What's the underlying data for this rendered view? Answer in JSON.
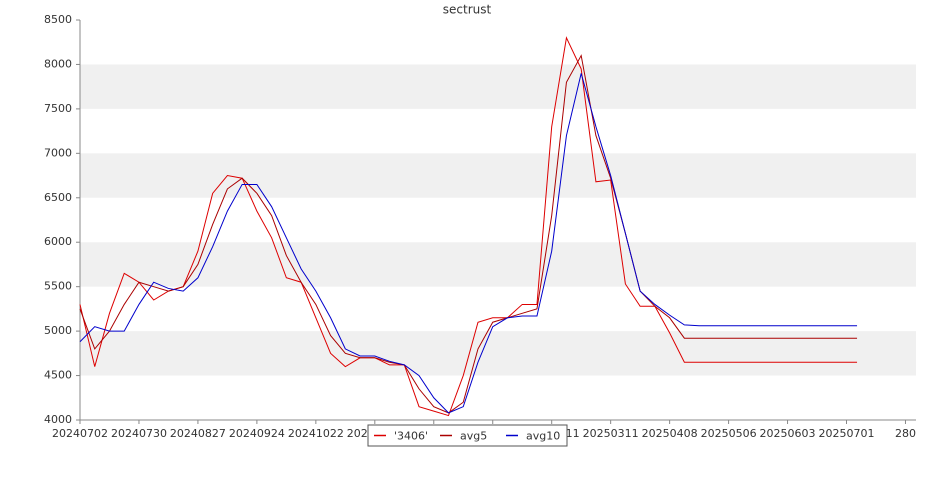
{
  "chart_data": {
    "type": "line",
    "title": "sectrust",
    "x": [
      "20240702",
      "20240709",
      "20240716",
      "20240723",
      "20240730",
      "20240806",
      "20240813",
      "20240820",
      "20240827",
      "20240903",
      "20240910",
      "20240917",
      "20240924",
      "20241001",
      "20241008",
      "20241015",
      "20241022",
      "20241029",
      "20241105",
      "20241112",
      "20241119",
      "20241126",
      "20241203",
      "20241210",
      "20241217",
      "20241224",
      "20241231",
      "20250107",
      "20250114",
      "20250121",
      "20250128",
      "20250204",
      "20250211",
      "20250218",
      "20250225",
      "20250304",
      "20250311",
      "20250318",
      "20250325",
      "20250401",
      "20250408",
      "20250415",
      "20250422",
      "20250429",
      "20250506",
      "20250513",
      "20250520",
      "20250527",
      "20250603",
      "20250610",
      "20250617",
      "20250624",
      "20250701",
      "20250706"
    ],
    "series": [
      {
        "name": "'3406'",
        "color": "#dd0000",
        "values": [
          5300,
          4600,
          5200,
          5650,
          5550,
          5350,
          5450,
          5500,
          5900,
          6550,
          6750,
          6720,
          6350,
          6050,
          5600,
          5550,
          5150,
          4750,
          4600,
          4700,
          4700,
          4620,
          4620,
          4150,
          4100,
          4050,
          4500,
          5100,
          5150,
          5150,
          5300,
          5300,
          7300,
          8300,
          7950,
          6680,
          6700,
          5530,
          5280,
          5280,
          4980,
          4650,
          4650,
          4650,
          4650,
          4650,
          4650,
          4650,
          4650,
          4650,
          4650,
          4650,
          4650,
          4650
        ]
      },
      {
        "name": "avg5",
        "color": "#aa0000",
        "values": [
          5250,
          4800,
          5000,
          5300,
          5550,
          5500,
          5450,
          5500,
          5750,
          6200,
          6600,
          6720,
          6550,
          6300,
          5850,
          5550,
          5300,
          4950,
          4750,
          4700,
          4700,
          4650,
          4620,
          4350,
          4150,
          4080,
          4200,
          4800,
          5100,
          5150,
          5200,
          5250,
          6300,
          7800,
          8100,
          7200,
          6720,
          6100,
          5450,
          5280,
          5150,
          4920,
          4920,
          4920,
          4920,
          4920,
          4920,
          4920,
          4920,
          4920,
          4920,
          4920,
          4920,
          4920
        ]
      },
      {
        "name": "avg10",
        "color": "#0000cc",
        "values": [
          4880,
          5050,
          5000,
          5000,
          5300,
          5550,
          5480,
          5450,
          5600,
          5950,
          6350,
          6650,
          6650,
          6400,
          6050,
          5700,
          5450,
          5150,
          4800,
          4720,
          4720,
          4660,
          4620,
          4500,
          4250,
          4080,
          4150,
          4650,
          5050,
          5150,
          5170,
          5170,
          5900,
          7200,
          7900,
          7300,
          6750,
          6100,
          5450,
          5300,
          5180,
          5070,
          5060,
          5060,
          5060,
          5060,
          5060,
          5060,
          5060,
          5060,
          5060,
          5060,
          5060,
          5060
        ]
      }
    ],
    "xlim": [
      "20240702",
      "20250803"
    ],
    "xticks": [
      "20240702",
      "20240730",
      "20240827",
      "20240924",
      "20241022",
      "20241119",
      "20241217",
      "20250114",
      "20250211",
      "20250311",
      "20250408",
      "20250506",
      "20250603",
      "20250701",
      {
        "value": "20250729",
        "label": "280"
      }
    ],
    "ylim": [
      4000,
      8500
    ],
    "yticks": [
      4000,
      4500,
      5000,
      5500,
      6000,
      6500,
      7000,
      7500,
      8000,
      8500
    ],
    "grid": "bands"
  }
}
